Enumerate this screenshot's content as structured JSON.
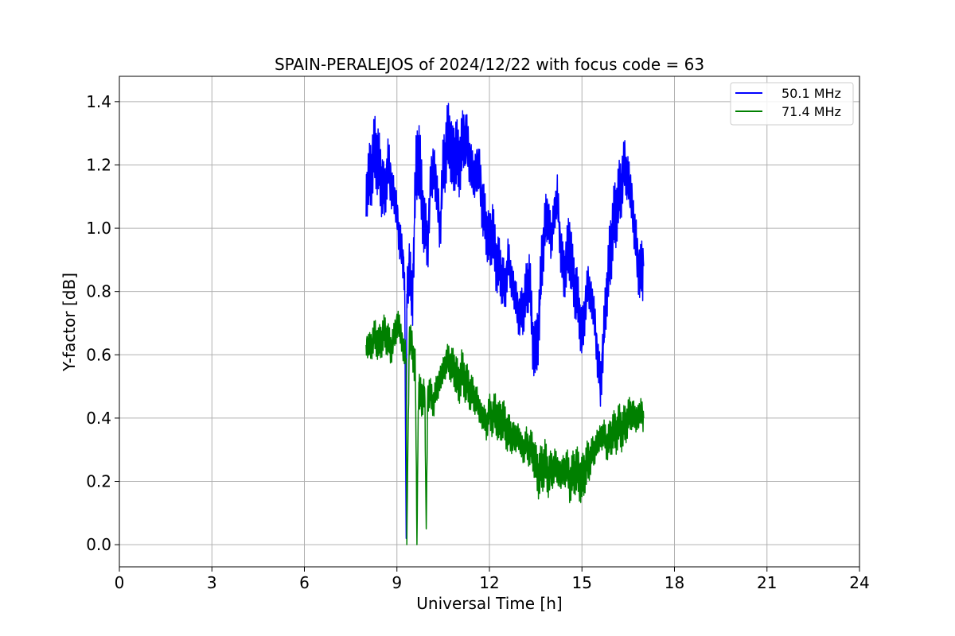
{
  "chart_data": {
    "type": "line",
    "title": "SPAIN-PERALEJOS of 2024/12/22 with focus code = 63",
    "xlabel": "Universal Time [h]",
    "ylabel": "Y-factor [dB]",
    "xlim": [
      0,
      24
    ],
    "ylim": [
      -0.07,
      1.48
    ],
    "x_ticks": [
      0,
      3,
      6,
      9,
      12,
      15,
      18,
      21,
      24
    ],
    "x_tick_labels": [
      "0",
      "3",
      "6",
      "9",
      "12",
      "15",
      "18",
      "21",
      "24"
    ],
    "y_ticks": [
      0.0,
      0.2,
      0.4,
      0.6,
      0.8,
      1.0,
      1.2,
      1.4
    ],
    "y_tick_labels": [
      "0.0",
      "0.2",
      "0.4",
      "0.6",
      "0.8",
      "1.0",
      "1.2",
      "1.4"
    ],
    "grid": true,
    "legend_position": "top-right",
    "series": [
      {
        "name": "50.1 MHz",
        "color": "#0000ff",
        "x": [
          8.0,
          8.1,
          8.2,
          8.3,
          8.4,
          8.5,
          8.6,
          8.7,
          8.8,
          8.9,
          9.0,
          9.1,
          9.2,
          9.25,
          9.3,
          9.32,
          9.4,
          9.5,
          9.6,
          9.7,
          9.8,
          9.9,
          10.0,
          10.1,
          10.2,
          10.3,
          10.4,
          10.5,
          10.6,
          10.7,
          10.8,
          10.9,
          11.0,
          11.1,
          11.2,
          11.3,
          11.4,
          11.5,
          11.6,
          11.7,
          11.8,
          11.9,
          12.0,
          12.1,
          12.2,
          12.3,
          12.4,
          12.5,
          12.6,
          12.7,
          12.8,
          12.9,
          13.0,
          13.1,
          13.2,
          13.3,
          13.4,
          13.5,
          13.6,
          13.7,
          13.8,
          13.9,
          14.0,
          14.1,
          14.2,
          14.3,
          14.4,
          14.5,
          14.6,
          14.7,
          14.8,
          14.9,
          15.0,
          15.1,
          15.2,
          15.3,
          15.4,
          15.5,
          15.6,
          15.7,
          15.8,
          15.9,
          16.0,
          16.1,
          16.2,
          16.3,
          16.4,
          16.5,
          16.6,
          16.7,
          16.8,
          16.9,
          17.0
        ],
        "y": [
          1.12,
          1.15,
          1.2,
          1.25,
          1.2,
          1.15,
          1.1,
          1.2,
          1.15,
          1.1,
          1.05,
          0.95,
          0.9,
          0.85,
          0.02,
          0.8,
          0.88,
          0.75,
          1.15,
          1.25,
          1.1,
          1.0,
          0.95,
          1.15,
          1.2,
          1.1,
          1.0,
          1.2,
          1.25,
          1.3,
          1.2,
          1.25,
          1.2,
          1.25,
          1.3,
          1.25,
          1.2,
          1.15,
          1.2,
          1.15,
          1.05,
          1.0,
          0.95,
          1.0,
          0.9,
          0.88,
          0.85,
          0.8,
          0.9,
          0.85,
          0.8,
          0.75,
          0.72,
          0.75,
          0.8,
          0.85,
          0.65,
          0.6,
          0.7,
          0.9,
          1.0,
          1.05,
          0.95,
          1.05,
          1.1,
          0.95,
          0.85,
          0.9,
          0.95,
          0.85,
          0.8,
          0.75,
          0.65,
          0.75,
          0.82,
          0.78,
          0.72,
          0.6,
          0.5,
          0.65,
          0.8,
          0.9,
          1.0,
          1.05,
          1.1,
          1.15,
          1.2,
          1.15,
          1.1,
          1.0,
          0.9,
          0.85,
          0.88
        ],
        "amp": [
          0.1,
          0.12,
          0.12,
          0.12,
          0.12,
          0.12,
          0.1,
          0.12,
          0.12,
          0.1,
          0.1,
          0.1,
          0.08,
          0.08,
          0.0,
          0.08,
          0.1,
          0.1,
          0.12,
          0.14,
          0.14,
          0.12,
          0.12,
          0.12,
          0.14,
          0.12,
          0.12,
          0.12,
          0.14,
          0.12,
          0.12,
          0.12,
          0.12,
          0.12,
          0.12,
          0.12,
          0.12,
          0.12,
          0.12,
          0.12,
          0.12,
          0.1,
          0.1,
          0.1,
          0.1,
          0.1,
          0.1,
          0.1,
          0.1,
          0.1,
          0.1,
          0.1,
          0.1,
          0.1,
          0.1,
          0.1,
          0.1,
          0.1,
          0.12,
          0.12,
          0.12,
          0.12,
          0.12,
          0.1,
          0.1,
          0.1,
          0.1,
          0.1,
          0.12,
          0.1,
          0.1,
          0.1,
          0.1,
          0.1,
          0.1,
          0.1,
          0.1,
          0.1,
          0.1,
          0.1,
          0.1,
          0.12,
          0.12,
          0.12,
          0.12,
          0.12,
          0.12,
          0.12,
          0.12,
          0.12,
          0.12,
          0.12,
          0.12
        ]
      },
      {
        "name": "71.4 MHz",
        "color": "#008000",
        "x": [
          8.0,
          8.1,
          8.2,
          8.3,
          8.4,
          8.5,
          8.6,
          8.7,
          8.8,
          8.9,
          9.0,
          9.1,
          9.2,
          9.3,
          9.32,
          9.4,
          9.5,
          9.6,
          9.65,
          9.7,
          9.8,
          9.9,
          9.95,
          10.0,
          10.1,
          10.2,
          10.3,
          10.4,
          10.5,
          10.6,
          10.7,
          10.8,
          10.9,
          11.0,
          11.1,
          11.2,
          11.3,
          11.4,
          11.5,
          11.6,
          11.7,
          11.8,
          11.9,
          12.0,
          12.1,
          12.2,
          12.3,
          12.4,
          12.5,
          12.6,
          12.7,
          12.8,
          12.9,
          13.0,
          13.1,
          13.2,
          13.3,
          13.4,
          13.5,
          13.6,
          13.7,
          13.8,
          13.9,
          14.0,
          14.1,
          14.2,
          14.3,
          14.4,
          14.5,
          14.6,
          14.7,
          14.8,
          14.9,
          15.0,
          15.1,
          15.2,
          15.3,
          15.4,
          15.5,
          15.6,
          15.7,
          15.8,
          15.9,
          16.0,
          16.1,
          16.2,
          16.3,
          16.4,
          16.5,
          16.6,
          16.7,
          16.8,
          16.9,
          17.0
        ],
        "y": [
          0.64,
          0.62,
          0.64,
          0.66,
          0.63,
          0.65,
          0.67,
          0.65,
          0.62,
          0.65,
          0.7,
          0.68,
          0.62,
          0.6,
          0.0,
          0.65,
          0.62,
          0.55,
          0.0,
          0.5,
          0.45,
          0.5,
          0.05,
          0.48,
          0.47,
          0.45,
          0.5,
          0.52,
          0.55,
          0.58,
          0.58,
          0.56,
          0.55,
          0.5,
          0.55,
          0.52,
          0.5,
          0.48,
          0.47,
          0.45,
          0.42,
          0.4,
          0.38,
          0.42,
          0.4,
          0.42,
          0.38,
          0.4,
          0.38,
          0.35,
          0.35,
          0.33,
          0.35,
          0.32,
          0.3,
          0.32,
          0.3,
          0.3,
          0.25,
          0.22,
          0.24,
          0.26,
          0.22,
          0.23,
          0.25,
          0.24,
          0.22,
          0.23,
          0.25,
          0.2,
          0.22,
          0.24,
          0.22,
          0.2,
          0.24,
          0.26,
          0.28,
          0.3,
          0.32,
          0.34,
          0.35,
          0.32,
          0.33,
          0.36,
          0.35,
          0.38,
          0.36,
          0.38,
          0.4,
          0.42,
          0.4,
          0.4,
          0.42,
          0.4
        ],
        "amp": [
          0.06,
          0.06,
          0.06,
          0.06,
          0.06,
          0.06,
          0.06,
          0.06,
          0.06,
          0.06,
          0.07,
          0.07,
          0.07,
          0.07,
          0.0,
          0.07,
          0.07,
          0.07,
          0.0,
          0.07,
          0.06,
          0.06,
          0.0,
          0.06,
          0.06,
          0.06,
          0.07,
          0.07,
          0.07,
          0.07,
          0.07,
          0.07,
          0.07,
          0.07,
          0.07,
          0.07,
          0.07,
          0.07,
          0.07,
          0.07,
          0.07,
          0.07,
          0.07,
          0.07,
          0.07,
          0.07,
          0.07,
          0.07,
          0.07,
          0.07,
          0.07,
          0.07,
          0.07,
          0.07,
          0.07,
          0.07,
          0.07,
          0.07,
          0.07,
          0.08,
          0.08,
          0.08,
          0.08,
          0.08,
          0.08,
          0.08,
          0.08,
          0.08,
          0.08,
          0.08,
          0.08,
          0.08,
          0.08,
          0.08,
          0.08,
          0.08,
          0.07,
          0.07,
          0.07,
          0.07,
          0.07,
          0.07,
          0.07,
          0.07,
          0.07,
          0.07,
          0.07,
          0.07,
          0.07,
          0.07,
          0.07,
          0.07,
          0.07,
          0.07
        ]
      }
    ]
  }
}
